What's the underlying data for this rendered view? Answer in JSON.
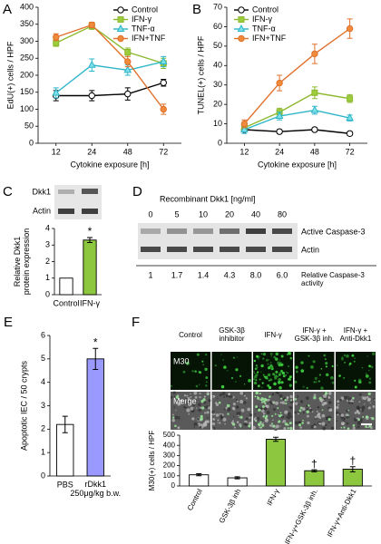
{
  "chart_data": [
    {
      "type": "line",
      "panel": "A",
      "y_label": "EdU(+) cells / HPF",
      "x_label": "Cytokine exposure [h]",
      "categories": [
        "12",
        "24",
        "48",
        "72"
      ],
      "ylim": [
        0,
        400
      ],
      "yticks": [
        0,
        50,
        100,
        150,
        200,
        250,
        300,
        350,
        400
      ],
      "legend": "upper right",
      "series": [
        {
          "name": "Control",
          "color": "#000000",
          "marker_fill": "#ffffff",
          "marker": "circle",
          "values": [
            140,
            140,
            145,
            178
          ],
          "errors": [
            15,
            15,
            18,
            10
          ]
        },
        {
          "name": "IFN-γ",
          "color": "#8db92e",
          "marker_fill": "#9ccc3c",
          "marker": "square",
          "values": [
            295,
            345,
            268,
            235
          ],
          "errors": [
            10,
            10,
            12,
            15
          ]
        },
        {
          "name": "TNF-α",
          "color": "#2bb5c8",
          "marker_fill": "#7fe0ea",
          "marker": "triangle",
          "values": [
            148,
            230,
            215,
            240
          ],
          "errors": [
            15,
            18,
            15,
            15
          ]
        },
        {
          "name": "IFN+TNF",
          "color": "#e0702a",
          "marker_fill": "#f08a3c",
          "marker": "circle",
          "values": [
            312,
            348,
            240,
            100
          ],
          "errors": [
            10,
            8,
            15,
            15
          ]
        }
      ]
    },
    {
      "type": "line",
      "panel": "B",
      "y_label": "TUNEL(+) cells / HPF",
      "x_label": "Cytokine exposure [h]",
      "categories": [
        "12",
        "24",
        "48",
        "72"
      ],
      "ylim": [
        0,
        70
      ],
      "yticks": [
        0,
        10,
        20,
        30,
        40,
        50,
        60,
        70
      ],
      "legend": "upper left",
      "series": [
        {
          "name": "Control",
          "color": "#000000",
          "marker_fill": "#ffffff",
          "marker": "circle",
          "values": [
            7,
            6,
            7,
            5
          ],
          "errors": [
            1,
            1,
            1,
            1
          ]
        },
        {
          "name": "IFN-γ",
          "color": "#8db92e",
          "marker_fill": "#9ccc3c",
          "marker": "square",
          "values": [
            8,
            16,
            26,
            23
          ],
          "errors": [
            2,
            2,
            3,
            2
          ]
        },
        {
          "name": "TNF-α",
          "color": "#2bb5c8",
          "marker_fill": "#7fe0ea",
          "marker": "triangle",
          "values": [
            7,
            14,
            17,
            13
          ],
          "errors": [
            2,
            2,
            2,
            1.5
          ]
        },
        {
          "name": "IFN+TNF",
          "color": "#e0702a",
          "marker_fill": "#f08a3c",
          "marker": "circle",
          "values": [
            10,
            31,
            46,
            59
          ],
          "errors": [
            2,
            4,
            5,
            5
          ]
        }
      ]
    },
    {
      "type": "bar",
      "y_label": "Relative Dkk1\nprotein expression",
      "categories": [
        "Control",
        "IFN-γ"
      ],
      "values": [
        1,
        3.3
      ],
      "errors": [
        null,
        0.15
      ],
      "colors": [
        "#ffffff",
        "#8dc63f"
      ],
      "significance": [
        null,
        "*"
      ],
      "ylim": [
        0,
        4
      ],
      "yticks": [
        0,
        1,
        2,
        3,
        4
      ]
    },
    {
      "type": "bar",
      "panel": "E",
      "y_label": "Apoptotic IEC / 50 crypts",
      "categories": [
        "PBS",
        "rDkk1\n250μg/kg b.w."
      ],
      "values": [
        2.2,
        5.0
      ],
      "errors": [
        0.35,
        0.45
      ],
      "colors": [
        "#ffffff",
        "#9999ff"
      ],
      "significance": [
        null,
        "*"
      ],
      "ylim": [
        0,
        6
      ],
      "yticks": [
        0,
        1,
        2,
        3,
        4,
        5,
        6
      ]
    },
    {
      "type": "bar",
      "y_label": "M30(+) cells / HPF",
      "categories": [
        "Control",
        "GSK-3β inh",
        "IFN-γ",
        "IFN-γ+GSK-3β inh.",
        "IFN-γ+Anti-Dkk1"
      ],
      "values": [
        110,
        80,
        460,
        150,
        165
      ],
      "errors": [
        10,
        10,
        20,
        10,
        25
      ],
      "colors": [
        "#ffffff",
        "#ffffff",
        "#8dc63f",
        "#8dc63f",
        "#8dc63f"
      ],
      "significance": [
        null,
        null,
        "*",
        "†",
        "†"
      ],
      "ylim": [
        0,
        500
      ],
      "yticks": [
        0,
        100,
        200,
        300,
        400,
        500
      ]
    }
  ],
  "blot_c": {
    "panel": "C",
    "bands": [
      "Dkk1",
      "Actin"
    ]
  },
  "blot_d": {
    "panel": "D",
    "title": "Recombinant Dkk1 [ng/ml]",
    "lanes": [
      "0",
      "5",
      "10",
      "20",
      "40",
      "80"
    ],
    "bands": [
      "Active Caspase-3",
      "Actin"
    ],
    "relative_activity": [
      "1",
      "1.7",
      "1.4",
      "4.3",
      "8.0",
      "6.0"
    ],
    "relative_activity_label": "Relative Caspase-3\nactivity"
  },
  "images_f": {
    "panel": "F",
    "columns": [
      "Control",
      "GSK-3β\ninhibitor",
      "IFN-γ",
      "IFN-γ +\nGSK-3β inh.",
      "IFN-γ +\nAnti-Dkk1"
    ],
    "rows": [
      "M30",
      "Merge"
    ]
  }
}
